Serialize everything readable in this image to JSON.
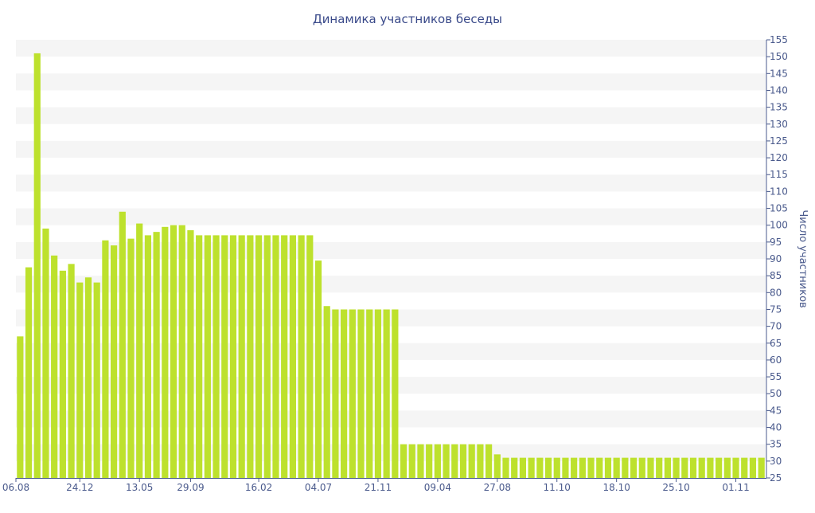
{
  "chart_data": {
    "type": "bar",
    "title": "Динамика участников беседы",
    "xlabel": "",
    "ylabel": "Число участников",
    "ylim": [
      25,
      155
    ],
    "yticks": [
      25,
      30,
      35,
      40,
      45,
      50,
      55,
      60,
      65,
      70,
      75,
      80,
      85,
      90,
      95,
      100,
      105,
      110,
      115,
      120,
      125,
      130,
      135,
      140,
      145,
      150,
      155
    ],
    "grid": true,
    "y_axis_side": "right",
    "xtick_labels": [
      "06.08",
      "24.12",
      "13.05",
      "29.09",
      "16.02",
      "04.07",
      "21.11",
      "09.04",
      "27.08",
      "11.10",
      "18.10",
      "25.10",
      "01.11"
    ],
    "xtick_positions": [
      0,
      7,
      14,
      20,
      28,
      35,
      42,
      49,
      56,
      63,
      70,
      77,
      84
    ],
    "values": [
      67,
      87.5,
      151,
      99,
      91,
      86.5,
      88.5,
      83,
      84.5,
      83,
      95.5,
      94,
      104,
      96,
      100.5,
      97,
      98,
      99.5,
      100,
      100,
      98.5,
      97,
      97,
      97,
      97,
      97,
      97,
      97,
      97,
      97,
      97,
      97,
      97,
      97,
      97,
      89.5,
      76,
      75,
      75,
      75,
      75,
      75,
      75,
      75,
      75,
      35,
      35,
      35,
      35,
      35,
      35,
      35,
      35,
      35,
      35,
      35,
      32,
      31,
      31,
      31,
      31,
      31,
      31,
      31,
      31,
      31,
      31,
      31,
      31,
      31,
      31,
      31,
      31,
      31,
      31,
      31,
      31,
      31,
      31,
      31,
      31,
      31,
      31,
      31,
      31,
      31,
      31,
      31
    ],
    "colors": {
      "bar": "#bde12d",
      "band": "#f5f5f5",
      "axis": "#4a5a8c",
      "title": "#3a4a8a"
    }
  }
}
